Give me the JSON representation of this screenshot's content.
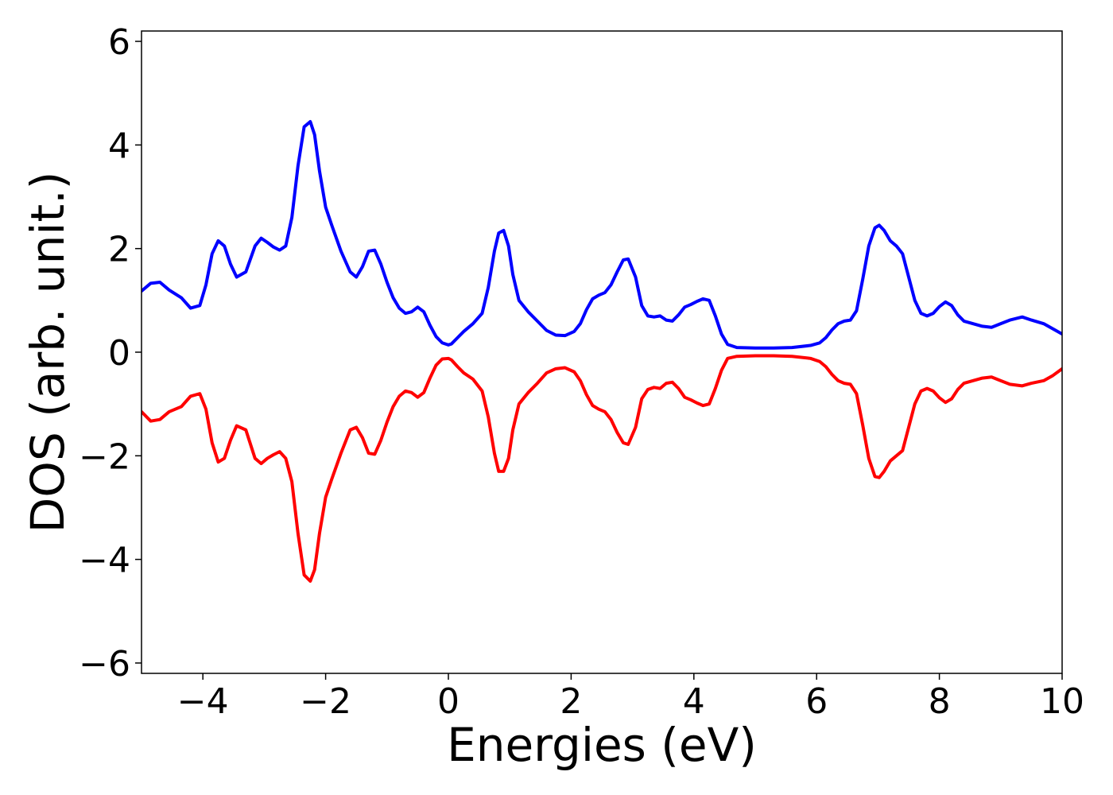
{
  "chart_data": {
    "type": "line",
    "title": "",
    "xlabel": "Energies (eV)",
    "ylabel": "DOS (arb. unit.)",
    "xlim": [
      -5,
      10
    ],
    "ylim": [
      -6.2,
      6.2
    ],
    "xticks": [
      -4,
      -2,
      0,
      2,
      4,
      6,
      8,
      10
    ],
    "xtick_labels": [
      "−4",
      "−2",
      "0",
      "2",
      "4",
      "6",
      "8",
      "10"
    ],
    "yticks": [
      -6,
      -4,
      -2,
      0,
      2,
      4,
      6
    ],
    "ytick_labels": [
      "−6",
      "−4",
      "−2",
      "0",
      "2",
      "4",
      "6"
    ],
    "grid": false,
    "legend": "none",
    "series": [
      {
        "color": "#0000ff",
        "x": [
          -5.0,
          -4.85,
          -4.7,
          -4.55,
          -4.35,
          -4.2,
          -4.05,
          -3.95,
          -3.85,
          -3.75,
          -3.65,
          -3.55,
          -3.45,
          -3.3,
          -3.15,
          -3.05,
          -2.95,
          -2.85,
          -2.75,
          -2.65,
          -2.55,
          -2.45,
          -2.35,
          -2.25,
          -2.18,
          -2.1,
          -2.0,
          -1.9,
          -1.75,
          -1.6,
          -1.5,
          -1.4,
          -1.3,
          -1.2,
          -1.1,
          -1.0,
          -0.9,
          -0.8,
          -0.7,
          -0.6,
          -0.5,
          -0.4,
          -0.3,
          -0.2,
          -0.1,
          0.0,
          0.05,
          0.15,
          0.25,
          0.4,
          0.55,
          0.65,
          0.75,
          0.82,
          0.9,
          0.98,
          1.05,
          1.15,
          1.3,
          1.45,
          1.6,
          1.75,
          1.9,
          2.05,
          2.15,
          2.25,
          2.35,
          2.45,
          2.55,
          2.65,
          2.75,
          2.85,
          2.93,
          3.05,
          3.15,
          3.25,
          3.35,
          3.45,
          3.55,
          3.65,
          3.75,
          3.85,
          3.95,
          4.05,
          4.15,
          4.25,
          4.35,
          4.45,
          4.55,
          4.7,
          5.0,
          5.3,
          5.6,
          5.9,
          6.05,
          6.15,
          6.25,
          6.35,
          6.45,
          6.55,
          6.65,
          6.75,
          6.85,
          6.95,
          7.02,
          7.1,
          7.2,
          7.3,
          7.4,
          7.5,
          7.6,
          7.7,
          7.8,
          7.9,
          8.0,
          8.1,
          8.2,
          8.3,
          8.4,
          8.55,
          8.7,
          8.85,
          9.0,
          9.15,
          9.35,
          9.5,
          9.7,
          9.85,
          10.0
        ],
        "y": [
          1.18,
          1.33,
          1.35,
          1.2,
          1.05,
          0.85,
          0.9,
          1.3,
          1.9,
          2.15,
          2.05,
          1.7,
          1.45,
          1.55,
          2.05,
          2.2,
          2.12,
          2.03,
          1.97,
          2.05,
          2.6,
          3.6,
          4.35,
          4.45,
          4.2,
          3.5,
          2.8,
          2.45,
          1.95,
          1.55,
          1.45,
          1.65,
          1.95,
          1.97,
          1.7,
          1.35,
          1.05,
          0.85,
          0.75,
          0.78,
          0.87,
          0.78,
          0.52,
          0.3,
          0.18,
          0.14,
          0.16,
          0.28,
          0.4,
          0.55,
          0.75,
          1.25,
          1.95,
          2.3,
          2.35,
          2.05,
          1.5,
          1.0,
          0.78,
          0.6,
          0.42,
          0.33,
          0.32,
          0.4,
          0.55,
          0.82,
          1.03,
          1.1,
          1.15,
          1.3,
          1.55,
          1.78,
          1.8,
          1.45,
          0.9,
          0.7,
          0.68,
          0.7,
          0.62,
          0.6,
          0.72,
          0.87,
          0.92,
          0.98,
          1.03,
          1.0,
          0.7,
          0.35,
          0.15,
          0.09,
          0.08,
          0.08,
          0.09,
          0.13,
          0.18,
          0.28,
          0.43,
          0.55,
          0.6,
          0.62,
          0.8,
          1.4,
          2.05,
          2.4,
          2.45,
          2.35,
          2.15,
          2.05,
          1.9,
          1.45,
          1.0,
          0.75,
          0.7,
          0.75,
          0.88,
          0.97,
          0.9,
          0.72,
          0.6,
          0.55,
          0.5,
          0.48,
          0.55,
          0.62,
          0.68,
          0.62,
          0.55,
          0.45,
          0.35
        ]
      },
      {
        "color": "#ff0000",
        "x": [
          -5.0,
          -4.85,
          -4.7,
          -4.55,
          -4.35,
          -4.2,
          -4.05,
          -3.95,
          -3.85,
          -3.75,
          -3.65,
          -3.55,
          -3.45,
          -3.3,
          -3.15,
          -3.05,
          -2.95,
          -2.85,
          -2.75,
          -2.65,
          -2.55,
          -2.45,
          -2.35,
          -2.25,
          -2.18,
          -2.1,
          -2.0,
          -1.9,
          -1.75,
          -1.6,
          -1.5,
          -1.4,
          -1.3,
          -1.2,
          -1.1,
          -1.0,
          -0.9,
          -0.8,
          -0.7,
          -0.6,
          -0.5,
          -0.4,
          -0.3,
          -0.2,
          -0.1,
          0.0,
          0.05,
          0.15,
          0.25,
          0.4,
          0.55,
          0.65,
          0.75,
          0.82,
          0.9,
          0.98,
          1.05,
          1.15,
          1.3,
          1.45,
          1.6,
          1.75,
          1.9,
          2.05,
          2.15,
          2.25,
          2.35,
          2.45,
          2.55,
          2.65,
          2.75,
          2.85,
          2.93,
          3.05,
          3.15,
          3.25,
          3.35,
          3.45,
          3.55,
          3.65,
          3.75,
          3.85,
          3.95,
          4.05,
          4.15,
          4.25,
          4.35,
          4.45,
          4.55,
          4.7,
          5.0,
          5.3,
          5.6,
          5.9,
          6.05,
          6.15,
          6.25,
          6.35,
          6.45,
          6.55,
          6.65,
          6.75,
          6.85,
          6.95,
          7.02,
          7.1,
          7.2,
          7.3,
          7.4,
          7.5,
          7.6,
          7.7,
          7.8,
          7.9,
          8.0,
          8.1,
          8.2,
          8.3,
          8.4,
          8.55,
          8.7,
          8.85,
          9.0,
          9.15,
          9.35,
          9.5,
          9.7,
          9.85,
          10.0
        ],
        "y": [
          -1.15,
          -1.33,
          -1.3,
          -1.15,
          -1.05,
          -0.85,
          -0.8,
          -1.1,
          -1.75,
          -2.12,
          -2.05,
          -1.7,
          -1.42,
          -1.5,
          -2.05,
          -2.15,
          -2.05,
          -1.98,
          -1.92,
          -2.05,
          -2.5,
          -3.5,
          -4.3,
          -4.42,
          -4.2,
          -3.5,
          -2.8,
          -2.45,
          -1.95,
          -1.5,
          -1.45,
          -1.65,
          -1.95,
          -1.97,
          -1.7,
          -1.35,
          -1.05,
          -0.85,
          -0.75,
          -0.78,
          -0.87,
          -0.78,
          -0.5,
          -0.25,
          -0.13,
          -0.12,
          -0.15,
          -0.28,
          -0.4,
          -0.52,
          -0.75,
          -1.25,
          -1.95,
          -2.3,
          -2.3,
          -2.05,
          -1.5,
          -1.0,
          -0.78,
          -0.6,
          -0.4,
          -0.32,
          -0.3,
          -0.38,
          -0.55,
          -0.82,
          -1.03,
          -1.1,
          -1.15,
          -1.3,
          -1.55,
          -1.75,
          -1.78,
          -1.45,
          -0.9,
          -0.72,
          -0.68,
          -0.7,
          -0.6,
          -0.58,
          -0.7,
          -0.87,
          -0.92,
          -0.98,
          -1.03,
          -1.0,
          -0.7,
          -0.35,
          -0.12,
          -0.08,
          -0.07,
          -0.07,
          -0.08,
          -0.12,
          -0.18,
          -0.28,
          -0.43,
          -0.55,
          -0.6,
          -0.62,
          -0.8,
          -1.4,
          -2.05,
          -2.4,
          -2.42,
          -2.3,
          -2.1,
          -2.0,
          -1.9,
          -1.45,
          -1.0,
          -0.75,
          -0.7,
          -0.75,
          -0.88,
          -0.97,
          -0.9,
          -0.72,
          -0.6,
          -0.55,
          -0.5,
          -0.48,
          -0.55,
          -0.62,
          -0.65,
          -0.6,
          -0.55,
          -0.45,
          -0.32
        ]
      }
    ]
  }
}
